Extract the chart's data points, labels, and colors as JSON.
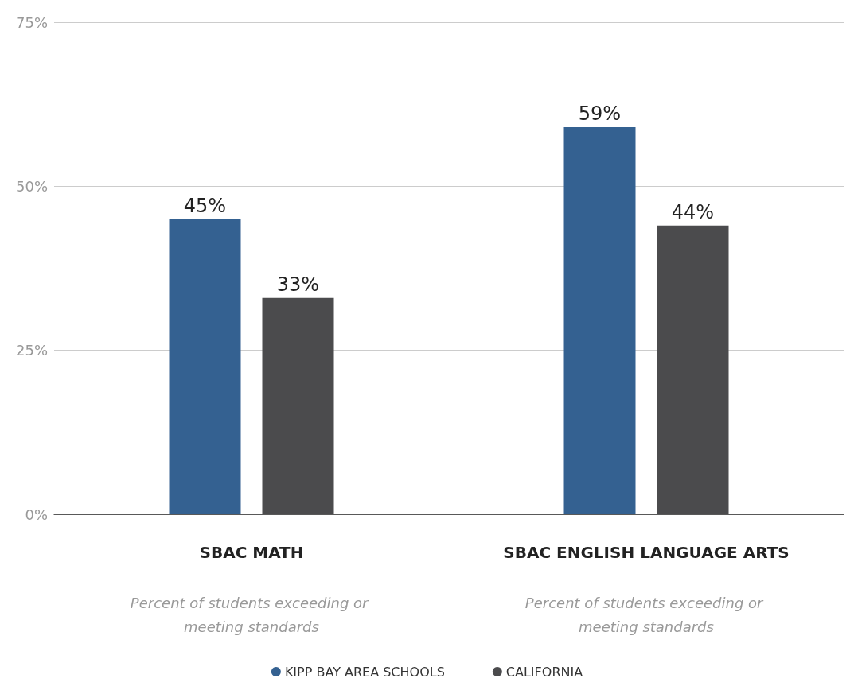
{
  "chart_data": {
    "type": "bar",
    "categories": [
      "SBAC MATH",
      "SBAC ENGLISH LANGUAGE ARTS"
    ],
    "series": [
      {
        "name": "KIPP BAY AREA SCHOOLS",
        "color": "#346191",
        "values": [
          45,
          59
        ],
        "value_labels": [
          "45%",
          "59%"
        ]
      },
      {
        "name": "CALIFORNIA",
        "color": "#4b4b4d",
        "values": [
          33,
          44
        ],
        "value_labels": [
          "33%",
          "44%"
        ]
      }
    ],
    "ylim": [
      0,
      75
    ],
    "yticks": [
      {
        "value": 0,
        "label": "0%"
      },
      {
        "value": 25,
        "label": "25%"
      },
      {
        "value": 50,
        "label": "50%"
      },
      {
        "value": 75,
        "label": "75%"
      }
    ],
    "grid": "y",
    "legend": "bottom",
    "annotations": [
      "Percent of students exceeding or meeting standards",
      "Percent of students exceeding or meeting standards"
    ]
  }
}
